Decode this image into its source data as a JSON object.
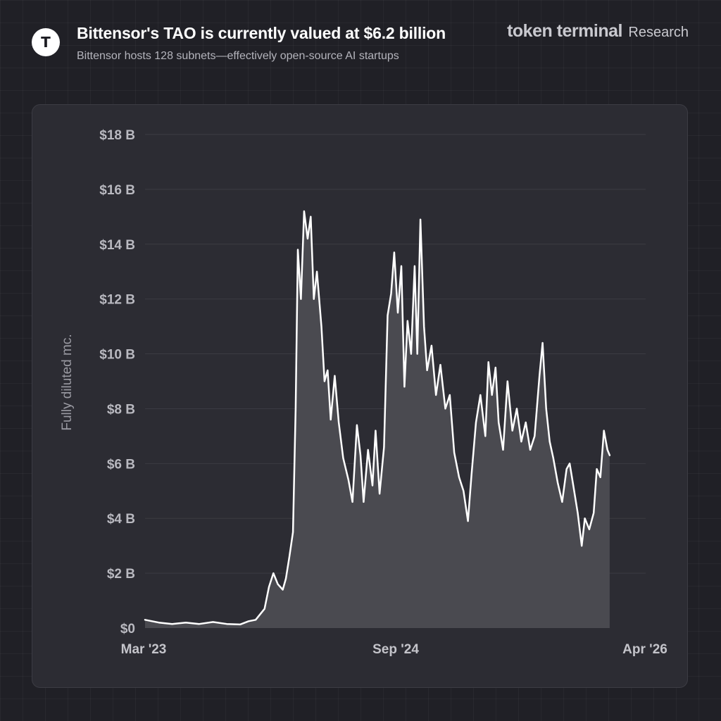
{
  "header": {
    "logo_glyph": "T",
    "title": "Bittensor's TAO is currently valued at $6.2 billion",
    "subtitle": "Bittensor hosts 128 subnets—effectively open-source AI startups",
    "brand_name": "token terminal",
    "brand_suffix": "Research"
  },
  "colors": {
    "background": "#202026",
    "panel": "#2c2c33",
    "line": "#ffffff",
    "area_fill": "#4a4a50",
    "text_muted": "#9a9aa2"
  },
  "chart_data": {
    "type": "area",
    "ylabel": "Fully diluted mc.",
    "ylim": [
      0,
      18
    ],
    "y_unit": "billion USD",
    "yticks": [
      "$0",
      "$2 B",
      "$4 B",
      "$6 B",
      "$8 B",
      "$10 B",
      "$12 B",
      "$14 B",
      "$16 B",
      "$18 B"
    ],
    "xticks": [
      "Mar '23",
      "Sep '24",
      "Apr '26"
    ],
    "xlim": [
      "2023-03-01",
      "2026-04-01"
    ],
    "grid": true,
    "series": [
      {
        "values": [
          [
            "2023-03-01",
            0.3
          ],
          [
            "2023-04-01",
            0.2
          ],
          [
            "2023-05-01",
            0.15
          ],
          [
            "2023-06-01",
            0.2
          ],
          [
            "2023-07-01",
            0.15
          ],
          [
            "2023-08-01",
            0.22
          ],
          [
            "2023-09-01",
            0.15
          ],
          [
            "2023-10-01",
            0.13
          ],
          [
            "2023-10-20",
            0.25
          ],
          [
            "2023-11-05",
            0.3
          ],
          [
            "2023-11-25",
            0.7
          ],
          [
            "2023-12-05",
            1.5
          ],
          [
            "2023-12-15",
            2.0
          ],
          [
            "2023-12-25",
            1.6
          ],
          [
            "2024-01-05",
            1.4
          ],
          [
            "2024-01-12",
            1.8
          ],
          [
            "2024-01-20",
            2.6
          ],
          [
            "2024-01-28",
            3.5
          ],
          [
            "2024-02-03",
            8.0
          ],
          [
            "2024-02-08",
            13.8
          ],
          [
            "2024-02-15",
            12.0
          ],
          [
            "2024-02-22",
            15.2
          ],
          [
            "2024-03-01",
            14.2
          ],
          [
            "2024-03-08",
            15.0
          ],
          [
            "2024-03-15",
            12.0
          ],
          [
            "2024-03-22",
            13.0
          ],
          [
            "2024-04-01",
            11.0
          ],
          [
            "2024-04-08",
            9.0
          ],
          [
            "2024-04-15",
            9.4
          ],
          [
            "2024-04-22",
            7.6
          ],
          [
            "2024-05-01",
            9.2
          ],
          [
            "2024-05-10",
            7.5
          ],
          [
            "2024-05-20",
            6.2
          ],
          [
            "2024-06-01",
            5.4
          ],
          [
            "2024-06-10",
            4.6
          ],
          [
            "2024-06-20",
            7.4
          ],
          [
            "2024-06-28",
            6.3
          ],
          [
            "2024-07-05",
            4.6
          ],
          [
            "2024-07-15",
            6.5
          ],
          [
            "2024-07-25",
            5.2
          ],
          [
            "2024-08-01",
            7.2
          ],
          [
            "2024-08-10",
            4.9
          ],
          [
            "2024-08-20",
            6.6
          ],
          [
            "2024-08-28",
            11.4
          ],
          [
            "2024-09-05",
            12.2
          ],
          [
            "2024-09-12",
            13.7
          ],
          [
            "2024-09-20",
            11.5
          ],
          [
            "2024-09-28",
            13.2
          ],
          [
            "2024-10-05",
            8.8
          ],
          [
            "2024-10-12",
            11.2
          ],
          [
            "2024-10-20",
            10.0
          ],
          [
            "2024-10-28",
            13.2
          ],
          [
            "2024-11-03",
            10.0
          ],
          [
            "2024-11-10",
            14.9
          ],
          [
            "2024-11-18",
            11.0
          ],
          [
            "2024-11-25",
            9.4
          ],
          [
            "2024-12-05",
            10.3
          ],
          [
            "2024-12-15",
            8.5
          ],
          [
            "2024-12-25",
            9.6
          ],
          [
            "2025-01-05",
            8.0
          ],
          [
            "2025-01-15",
            8.5
          ],
          [
            "2025-01-25",
            6.4
          ],
          [
            "2025-02-05",
            5.5
          ],
          [
            "2025-02-15",
            5.0
          ],
          [
            "2025-02-25",
            3.9
          ],
          [
            "2025-03-05",
            5.6
          ],
          [
            "2025-03-15",
            7.5
          ],
          [
            "2025-03-25",
            8.5
          ],
          [
            "2025-04-05",
            7.0
          ],
          [
            "2025-04-12",
            9.7
          ],
          [
            "2025-04-20",
            8.5
          ],
          [
            "2025-04-28",
            9.5
          ],
          [
            "2025-05-05",
            7.5
          ],
          [
            "2025-05-15",
            6.5
          ],
          [
            "2025-05-25",
            9.0
          ],
          [
            "2025-06-05",
            7.2
          ],
          [
            "2025-06-15",
            8.0
          ],
          [
            "2025-06-25",
            6.8
          ],
          [
            "2025-07-05",
            7.5
          ],
          [
            "2025-07-15",
            6.5
          ],
          [
            "2025-07-25",
            7.0
          ],
          [
            "2025-08-05",
            9.2
          ],
          [
            "2025-08-12",
            10.4
          ],
          [
            "2025-08-20",
            8.0
          ],
          [
            "2025-08-28",
            6.8
          ],
          [
            "2025-09-05",
            6.2
          ],
          [
            "2025-09-15",
            5.3
          ],
          [
            "2025-09-25",
            4.6
          ],
          [
            "2025-10-05",
            5.8
          ],
          [
            "2025-10-12",
            6.0
          ],
          [
            "2025-10-20",
            5.2
          ],
          [
            "2025-10-30",
            4.2
          ],
          [
            "2025-11-08",
            3.0
          ],
          [
            "2025-11-15",
            4.0
          ],
          [
            "2025-11-25",
            3.6
          ],
          [
            "2025-12-05",
            4.2
          ],
          [
            "2025-12-12",
            5.8
          ],
          [
            "2025-12-20",
            5.5
          ],
          [
            "2025-12-28",
            7.2
          ],
          [
            "2026-01-05",
            6.5
          ],
          [
            "2026-01-10",
            6.3
          ]
        ]
      }
    ]
  }
}
